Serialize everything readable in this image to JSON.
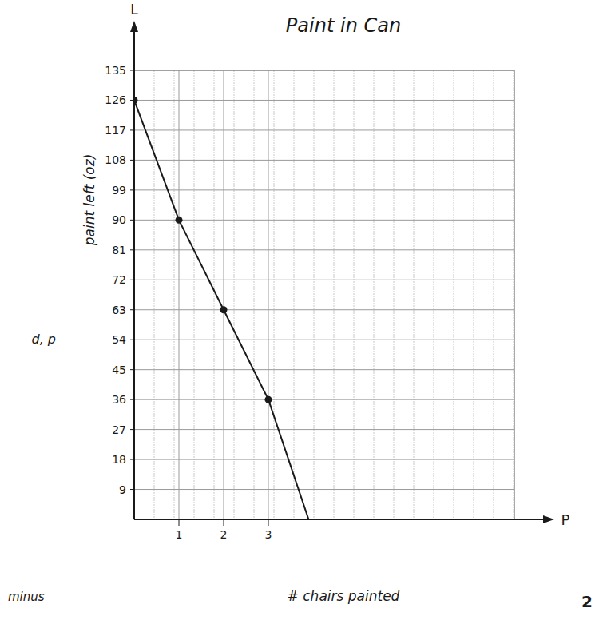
{
  "chart_data": {
    "type": "line",
    "title": "Paint in Can",
    "x_label": "# chairs painted",
    "y_label": "paint left (oz)",
    "x_axis_letter": "P",
    "y_axis_letter": "L",
    "annotations": [
      "d, p",
      "minus",
      "2"
    ],
    "xlim": [
      0,
      8.5
    ],
    "xticks": [
      1,
      2,
      3
    ],
    "ylim": [
      0,
      135
    ],
    "yticks": [
      9,
      18,
      27,
      36,
      45,
      54,
      63,
      72,
      81,
      90,
      99,
      108,
      117,
      126,
      135
    ],
    "grid": true,
    "series": [
      {
        "type": "line",
        "x": [
          0,
          1,
          2,
          3,
          3.9
        ],
        "values": [
          126,
          90,
          63,
          36,
          0
        ],
        "color": "#1a1a1a",
        "marker": "none"
      },
      {
        "type": "scatter",
        "x": [
          0,
          1,
          2,
          3
        ],
        "values": [
          126,
          90,
          63,
          36
        ],
        "color": "#1a1a1a",
        "marker": "circle"
      }
    ]
  }
}
